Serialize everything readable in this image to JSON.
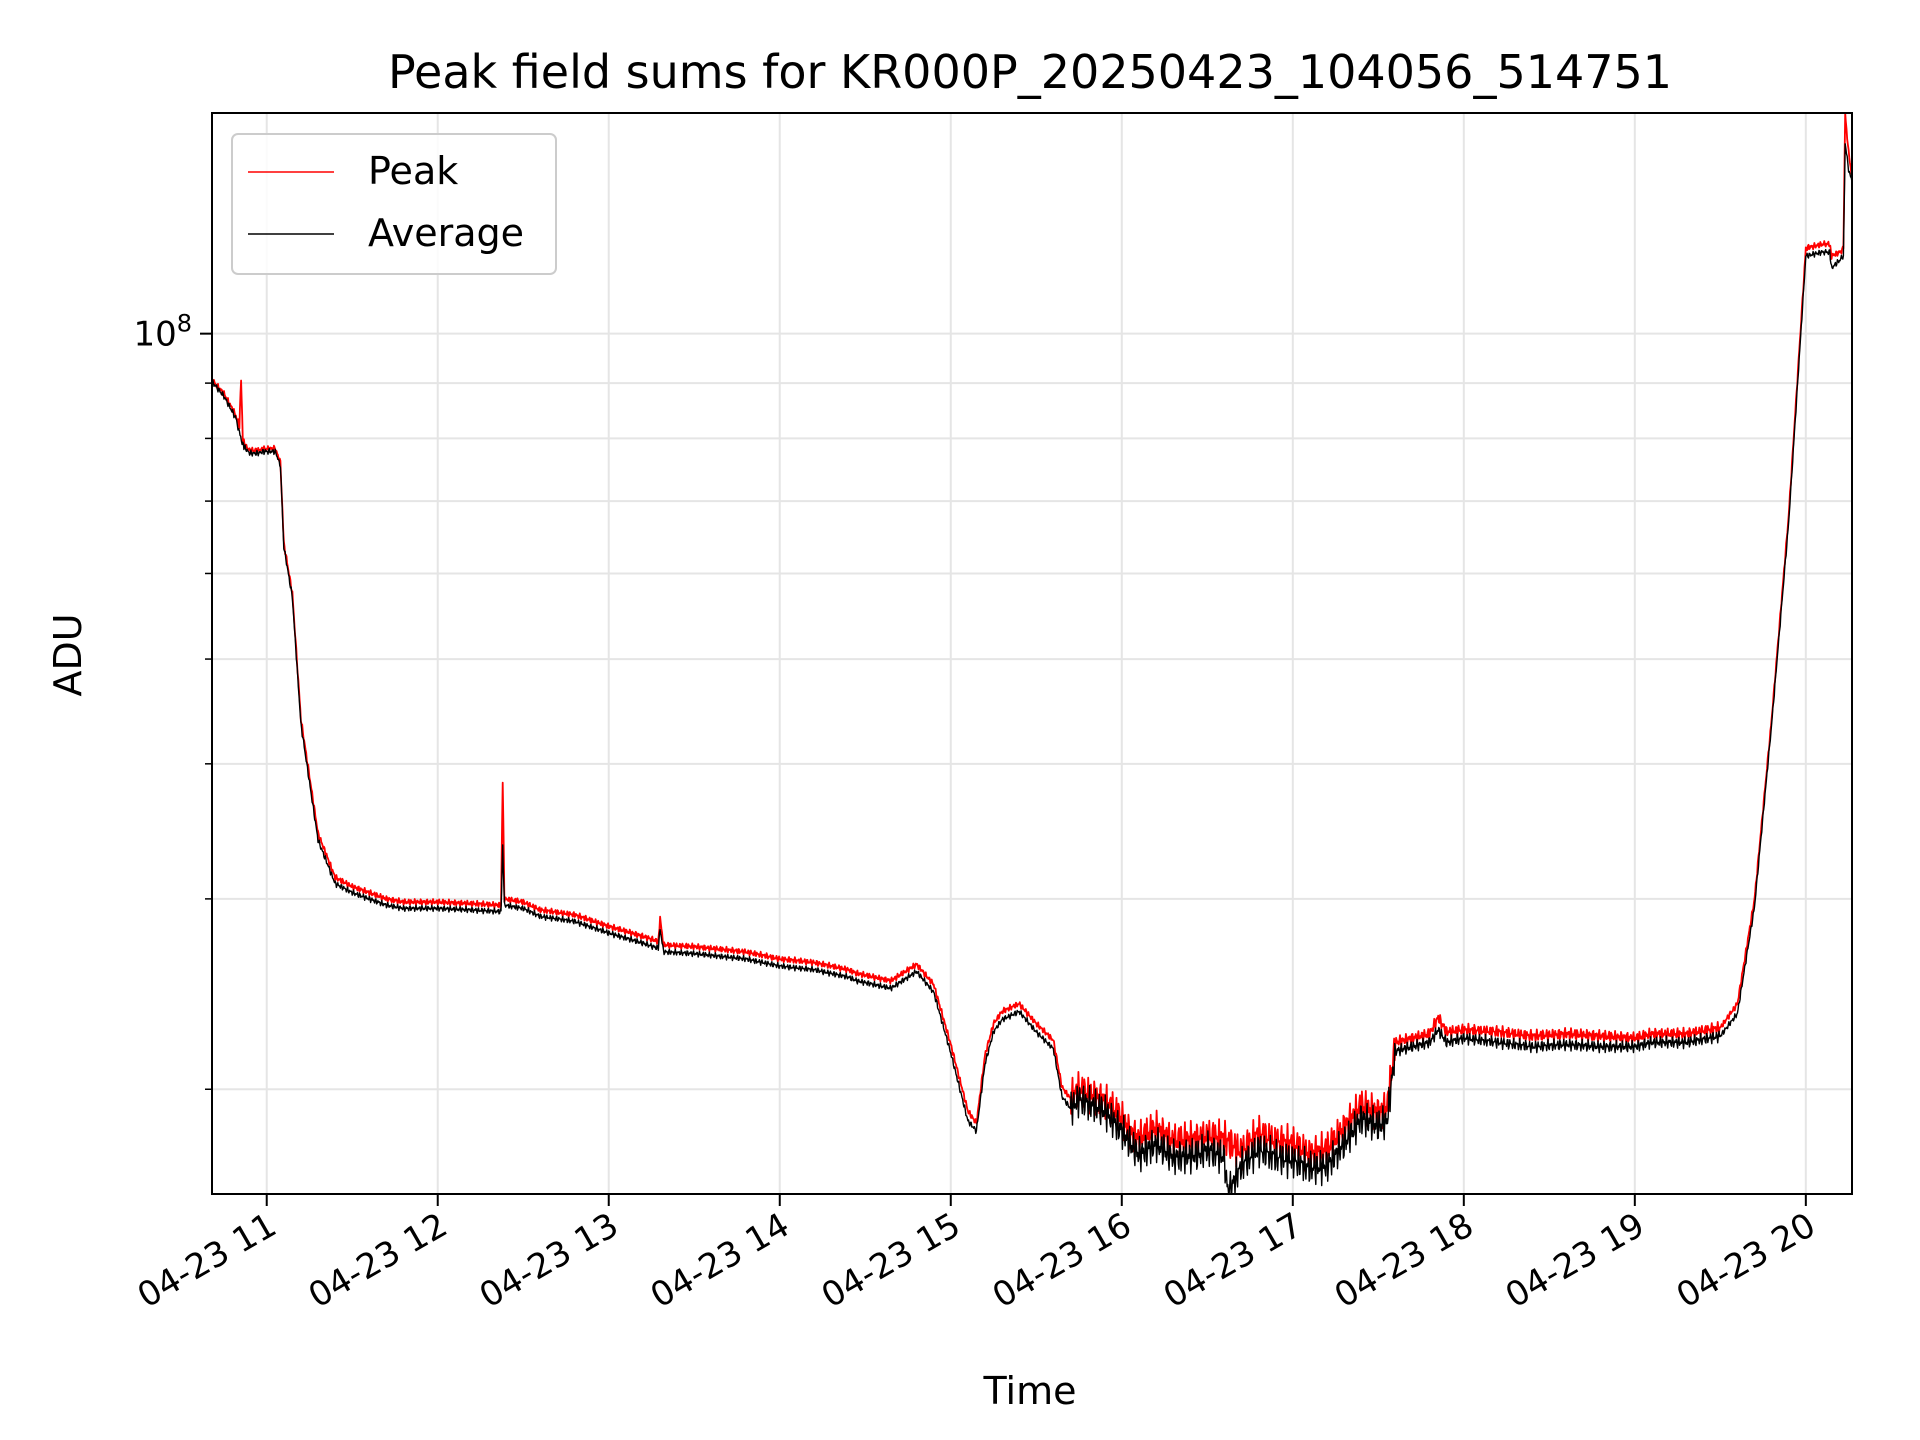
{
  "chart_data": {
    "type": "line",
    "title": "Peak field sums for KR000P_20250423_104056_514751",
    "xlabel": "Time",
    "ylabel": "ADU",
    "yscale": "log",
    "ylim": [
      16000000.0,
      160000000.0
    ],
    "ytick_labels": [
      {
        "value": 100000000.0,
        "base": "10",
        "exp": "8"
      }
    ],
    "x_tick_labels": [
      "04-23 11",
      "04-23 12",
      "04-23 13",
      "04-23 14",
      "04-23 15",
      "04-23 16",
      "04-23 17",
      "04-23 18",
      "04-23 19",
      "04-23 20"
    ],
    "x_tick_hours": [
      11,
      12,
      13,
      14,
      15,
      16,
      17,
      18,
      19,
      20
    ],
    "xlim_hours": [
      10.68,
      20.27
    ],
    "grid": true,
    "legend_position": "upper-left",
    "series": [
      {
        "name": "Peak",
        "color": "#ff0000",
        "x_hours": [
          10.68,
          10.75,
          10.82,
          10.84,
          10.85,
          10.86,
          10.87,
          10.9,
          10.95,
          10.98,
          11.05,
          11.08,
          11.1,
          11.15,
          11.2,
          11.3,
          11.4,
          11.5,
          11.6,
          11.7,
          11.8,
          12.0,
          12.2,
          12.37,
          12.38,
          12.39,
          12.5,
          12.6,
          12.8,
          13.0,
          13.2,
          13.29,
          13.3,
          13.32,
          13.5,
          13.8,
          14.0,
          14.2,
          14.4,
          14.45,
          14.5,
          14.6,
          14.65,
          14.8,
          14.9,
          15.0,
          15.1,
          15.15,
          15.2,
          15.25,
          15.3,
          15.4,
          15.5,
          15.6,
          15.65,
          15.7,
          15.75,
          15.8,
          15.9,
          16.0,
          16.05,
          16.1,
          16.2,
          16.3,
          16.45,
          16.5,
          16.6,
          16.7,
          16.8,
          16.9,
          17.0,
          17.1,
          17.2,
          17.3,
          17.4,
          17.5,
          17.55,
          17.6,
          17.8,
          17.85,
          17.9,
          18.0,
          18.2,
          18.4,
          18.6,
          18.8,
          19.0,
          19.1,
          19.3,
          19.5,
          19.6,
          19.7,
          19.8,
          19.9,
          20.0,
          20.1,
          20.14,
          20.15,
          20.2,
          20.22,
          20.23,
          20.25,
          20.27
        ],
        "y_millions": [
          90.6,
          88.0,
          84.0,
          82.0,
          91.0,
          80.0,
          79.0,
          78.0,
          78.0,
          78.2,
          78.3,
          76.0,
          64.0,
          57.5,
          44.0,
          34.5,
          31.4,
          30.8,
          30.4,
          30.0,
          29.8,
          29.8,
          29.7,
          29.6,
          38.6,
          30.0,
          29.8,
          29.3,
          29.0,
          28.3,
          27.7,
          27.4,
          28.8,
          27.2,
          27.1,
          26.8,
          26.4,
          26.2,
          25.8,
          25.6,
          25.5,
          25.3,
          25.2,
          26.1,
          25.0,
          22.0,
          19.1,
          18.6,
          21.5,
          23.0,
          23.6,
          24.0,
          23.0,
          22.2,
          20.1,
          19.6,
          20.0,
          19.8,
          19.5,
          18.8,
          18.2,
          18.0,
          18.4,
          17.9,
          18.0,
          18.1,
          18.0,
          17.5,
          18.2,
          17.9,
          17.8,
          17.4,
          17.6,
          18.4,
          19.3,
          19.0,
          19.2,
          22.1,
          22.5,
          23.3,
          22.6,
          22.7,
          22.6,
          22.4,
          22.5,
          22.4,
          22.3,
          22.5,
          22.5,
          22.8,
          24.0,
          30.0,
          44.0,
          68.0,
          120.0,
          121.0,
          121.0,
          118.0,
          119.0,
          120.0,
          160.0,
          147.0,
          140.0
        ]
      },
      {
        "name": "Average",
        "color": "#000000",
        "x_hours": [
          10.68,
          10.75,
          10.82,
          10.84,
          10.86,
          10.87,
          10.9,
          10.95,
          10.98,
          11.05,
          11.08,
          11.1,
          11.15,
          11.2,
          11.3,
          11.4,
          11.5,
          11.6,
          11.7,
          11.8,
          12.0,
          12.2,
          12.37,
          12.38,
          12.39,
          12.5,
          12.6,
          12.8,
          13.0,
          13.2,
          13.29,
          13.3,
          13.32,
          13.5,
          13.8,
          14.0,
          14.2,
          14.4,
          14.45,
          14.5,
          14.6,
          14.65,
          14.8,
          14.9,
          15.0,
          15.1,
          15.15,
          15.2,
          15.25,
          15.3,
          15.4,
          15.5,
          15.6,
          15.65,
          15.7,
          15.75,
          15.8,
          15.9,
          16.0,
          16.05,
          16.1,
          16.2,
          16.3,
          16.45,
          16.5,
          16.6,
          16.62,
          16.7,
          16.8,
          16.9,
          17.0,
          17.1,
          17.2,
          17.3,
          17.4,
          17.5,
          17.55,
          17.6,
          17.8,
          17.85,
          17.9,
          18.0,
          18.2,
          18.4,
          18.6,
          18.8,
          19.0,
          19.1,
          19.3,
          19.5,
          19.6,
          19.7,
          19.8,
          19.9,
          20.0,
          20.1,
          20.14,
          20.15,
          20.2,
          20.22,
          20.23,
          20.25,
          20.27
        ],
        "y_millions": [
          90.3,
          87.5,
          83.5,
          81.0,
          79.0,
          78.5,
          77.5,
          77.5,
          77.8,
          77.8,
          75.5,
          63.5,
          57.0,
          43.5,
          34.0,
          31.0,
          30.4,
          30.0,
          29.6,
          29.4,
          29.4,
          29.3,
          29.2,
          33.5,
          29.6,
          29.4,
          28.9,
          28.6,
          27.9,
          27.3,
          27.0,
          28.2,
          26.8,
          26.7,
          26.4,
          26.0,
          25.8,
          25.4,
          25.2,
          25.1,
          24.9,
          24.8,
          25.7,
          24.6,
          21.6,
          18.7,
          18.3,
          21.1,
          22.6,
          23.2,
          23.6,
          22.6,
          21.8,
          19.7,
          19.2,
          19.6,
          19.4,
          19.1,
          18.3,
          17.8,
          17.4,
          17.8,
          17.3,
          17.4,
          17.6,
          17.3,
          16.0,
          17.0,
          17.6,
          17.3,
          17.2,
          16.9,
          17.0,
          17.8,
          18.8,
          18.5,
          18.7,
          21.7,
          22.1,
          22.7,
          22.1,
          22.3,
          22.1,
          21.9,
          22.0,
          21.9,
          21.9,
          22.1,
          22.1,
          22.4,
          23.5,
          29.5,
          43.5,
          67.0,
          118.0,
          119.0,
          119.0,
          115.0,
          117.0,
          118.0,
          150.0,
          142.0,
          138.0
        ]
      }
    ]
  }
}
